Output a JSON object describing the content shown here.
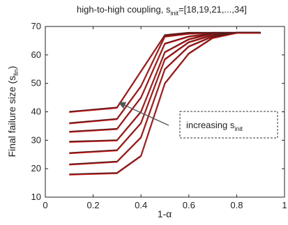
{
  "chart_data": {
    "type": "line",
    "title": "high-to-high coupling, s_init=[18,19,21,...,34]",
    "title_parts": {
      "main": "high-to-high coupling, s",
      "sub": "init",
      "tail": "=[18,19,21,...,34]"
    },
    "xlabel": "1-α",
    "ylabel_parts": {
      "main": "Final failure size (s",
      "sub": "fin",
      "tail": ")"
    },
    "xlim": [
      0,
      1
    ],
    "ylim": [
      10,
      70
    ],
    "xticks": [
      "0",
      "0.2",
      "0.4",
      "0.6",
      "0.8",
      "1"
    ],
    "yticks": [
      "10",
      "20",
      "30",
      "40",
      "50",
      "60",
      "70"
    ],
    "xtick_values": [
      0,
      0.2,
      0.4,
      0.6,
      0.8,
      1
    ],
    "ytick_values": [
      10,
      20,
      30,
      40,
      50,
      60,
      70
    ],
    "annotation_parts": {
      "main": "increasing s",
      "sub": "init"
    },
    "colors": {
      "series_dark": "#5a1a1a",
      "series_red": "#d81e1e",
      "box": "#333333",
      "arrow": "#555555"
    },
    "series": [
      {
        "values": [
          [
            0.1,
            40.0
          ],
          [
            0.3,
            41.5
          ],
          [
            0.5,
            67.0
          ],
          [
            0.6,
            67.8
          ],
          [
            0.7,
            67.8
          ],
          [
            0.8,
            67.8
          ],
          [
            0.9,
            67.8
          ]
        ]
      },
      {
        "values": [
          [
            0.1,
            36.0
          ],
          [
            0.3,
            37.5
          ],
          [
            0.4,
            49.0
          ],
          [
            0.5,
            66.5
          ],
          [
            0.6,
            67.5
          ],
          [
            0.7,
            67.8
          ],
          [
            0.8,
            67.8
          ],
          [
            0.9,
            67.8
          ]
        ]
      },
      {
        "values": [
          [
            0.1,
            33.0
          ],
          [
            0.3,
            34.0
          ],
          [
            0.4,
            45.0
          ],
          [
            0.5,
            64.0
          ],
          [
            0.6,
            66.5
          ],
          [
            0.7,
            67.5
          ],
          [
            0.8,
            67.8
          ],
          [
            0.9,
            67.8
          ]
        ]
      },
      {
        "values": [
          [
            0.1,
            29.5
          ],
          [
            0.3,
            30.0
          ],
          [
            0.4,
            40.0
          ],
          [
            0.5,
            61.0
          ],
          [
            0.6,
            65.5
          ],
          [
            0.7,
            67.5
          ],
          [
            0.8,
            67.8
          ],
          [
            0.9,
            67.8
          ]
        ]
      },
      {
        "values": [
          [
            0.1,
            25.5
          ],
          [
            0.3,
            26.5
          ],
          [
            0.4,
            36.0
          ],
          [
            0.5,
            58.5
          ],
          [
            0.6,
            64.5
          ],
          [
            0.7,
            67.0
          ],
          [
            0.8,
            67.8
          ],
          [
            0.9,
            67.8
          ]
        ]
      },
      {
        "values": [
          [
            0.1,
            21.5
          ],
          [
            0.3,
            22.5
          ],
          [
            0.4,
            31.0
          ],
          [
            0.5,
            55.0
          ],
          [
            0.6,
            63.0
          ],
          [
            0.7,
            66.5
          ],
          [
            0.8,
            67.8
          ],
          [
            0.9,
            67.8
          ]
        ]
      },
      {
        "values": [
          [
            0.1,
            18.0
          ],
          [
            0.3,
            18.5
          ],
          [
            0.4,
            24.5
          ],
          [
            0.5,
            50.0
          ],
          [
            0.6,
            60.5
          ],
          [
            0.7,
            66.0
          ],
          [
            0.8,
            67.8
          ],
          [
            0.9,
            67.8
          ]
        ]
      }
    ]
  }
}
